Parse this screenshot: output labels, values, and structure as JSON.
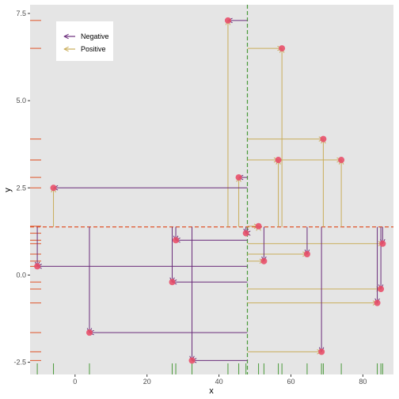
{
  "chart_data": {
    "type": "scatter",
    "title": "",
    "xlabel": "x",
    "ylabel": "y",
    "xlim": [
      -12.5,
      88.5
    ],
    "ylim": [
      -2.85,
      7.75
    ],
    "x_ticks": [
      {
        "value": 0,
        "label": "0"
      },
      {
        "value": 20,
        "label": "20"
      },
      {
        "value": 40,
        "label": "40"
      },
      {
        "value": 60,
        "label": "60"
      },
      {
        "value": 80,
        "label": "80"
      }
    ],
    "y_ticks": [
      {
        "value": -2.5,
        "label": "-2.5"
      },
      {
        "value": 0,
        "label": "0.0"
      },
      {
        "value": 2.5,
        "label": "2.5"
      },
      {
        "value": 5,
        "label": "5.0"
      },
      {
        "value": 7.5,
        "label": "7.5"
      }
    ],
    "grid": false,
    "background": "#e5e5e5",
    "reference_lines": {
      "vertical_x": 47.9,
      "vertical_color": "#4a9a3a",
      "horizontal_y": 1.38,
      "horizontal_color": "#e0552a"
    },
    "rug": {
      "x_color": "#4a9a3a",
      "y_color": "#e0552a"
    },
    "point_color": "#e8506a",
    "legend": {
      "position": "top-left",
      "entries": [
        {
          "label": "Negative",
          "color": "#6a2c7a"
        },
        {
          "label": "Positive",
          "color": "#c9ad5a"
        }
      ]
    },
    "points": [
      {
        "x": 42.5,
        "y": 7.3
      },
      {
        "x": 57.5,
        "y": 6.5
      },
      {
        "x": 69.0,
        "y": 3.9
      },
      {
        "x": 74.0,
        "y": 3.3
      },
      {
        "x": 56.5,
        "y": 3.3
      },
      {
        "x": 45.5,
        "y": 2.8
      },
      {
        "x": -6.0,
        "y": 2.5
      },
      {
        "x": 51.0,
        "y": 1.4
      },
      {
        "x": 47.5,
        "y": 1.2
      },
      {
        "x": 28.0,
        "y": 1.0
      },
      {
        "x": 85.5,
        "y": 0.9
      },
      {
        "x": 64.5,
        "y": 0.6
      },
      {
        "x": 52.5,
        "y": 0.4
      },
      {
        "x": -10.5,
        "y": 0.25
      },
      {
        "x": 27.0,
        "y": -0.2
      },
      {
        "x": 85.0,
        "y": -0.4
      },
      {
        "x": 84.0,
        "y": -0.8
      },
      {
        "x": 4.0,
        "y": -1.65
      },
      {
        "x": 68.5,
        "y": -2.2
      },
      {
        "x": 32.5,
        "y": -2.45
      }
    ]
  }
}
